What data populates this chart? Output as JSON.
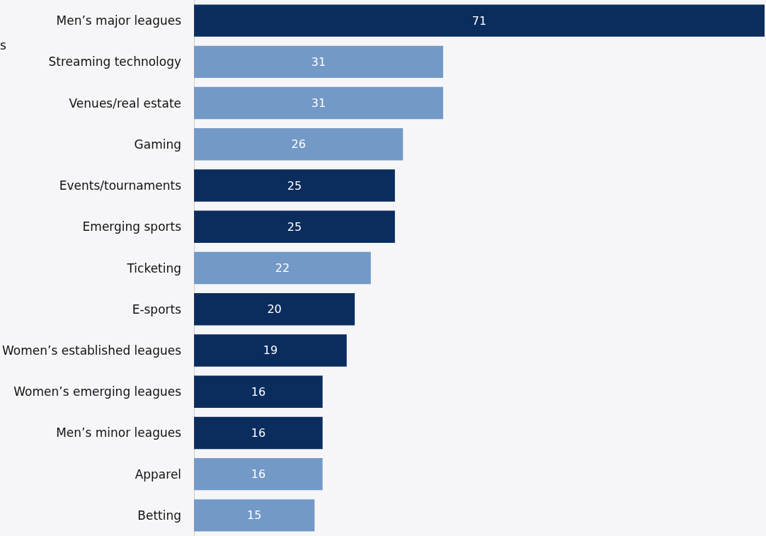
{
  "chart_data": {
    "type": "bar",
    "orientation": "horizontal",
    "data_labels": true,
    "annotations": [
      "s"
    ],
    "categories": [
      "Men’s major leagues",
      "Streaming technology",
      "Venues/real estate",
      "Gaming",
      "Events/tournaments",
      "Emerging sports",
      "Ticketing",
      "E-sports",
      "Women’s established leagues",
      "Women’s emerging leagues",
      "Men’s minor leagues",
      "Apparel",
      "Betting"
    ],
    "values": [
      71,
      31,
      31,
      26,
      25,
      25,
      22,
      20,
      19,
      16,
      16,
      16,
      15
    ],
    "colors": [
      "#0b2d5e",
      "#7399c6",
      "#7399c6",
      "#7399c6",
      "#0b2d5e",
      "#0b2d5e",
      "#7399c6",
      "#0b2d5e",
      "#0b2d5e",
      "#0b2d5e",
      "#0b2d5e",
      "#7399c6",
      "#7399c6"
    ]
  }
}
